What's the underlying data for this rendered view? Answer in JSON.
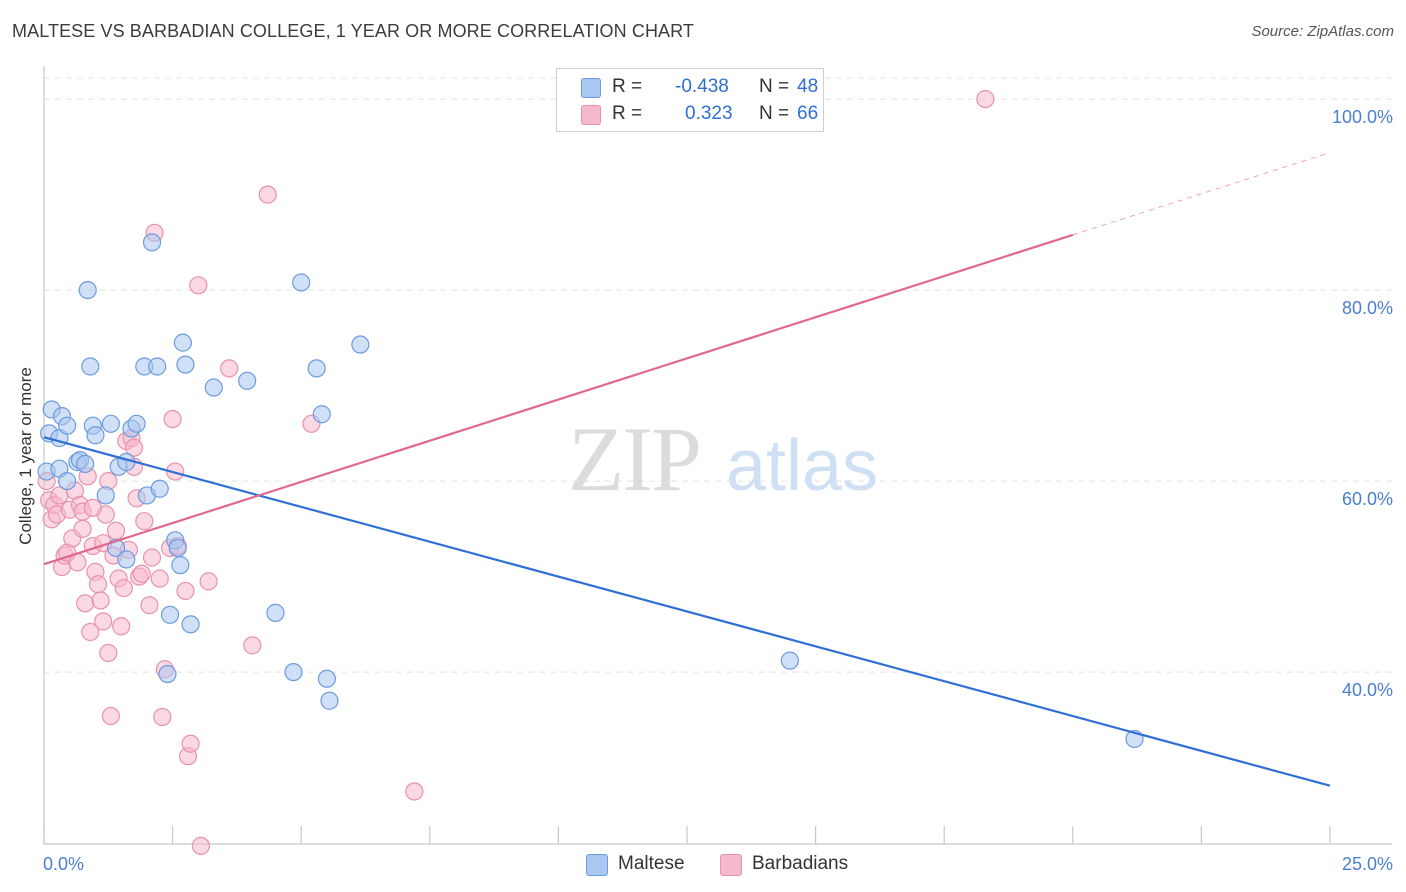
{
  "title": "MALTESE VS BARBADIAN COLLEGE, 1 YEAR OR MORE CORRELATION CHART",
  "source": "Source: ZipAtlas.com",
  "watermark": {
    "zip": "ZIP",
    "atlas": "atlas"
  },
  "colors": {
    "maltese_fill": "#a9c7ef",
    "maltese_stroke": "#6c9be0",
    "maltese_line": "#2f6fd6",
    "barbadian_fill": "#f5b9cc",
    "barbadian_stroke": "#e991ad",
    "barbadian_line": "#e0688f",
    "tick_text": "#4a7fd0"
  },
  "legend": {
    "rows": [
      {
        "label": "R =",
        "r": "-0.438",
        "n_label": "N =",
        "n": "48",
        "color": "#a9c7ef"
      },
      {
        "label": "R =",
        "r": "0.323",
        "n_label": "N =",
        "n": "66",
        "color": "#f5b9cc"
      }
    ]
  },
  "bottom_legend": [
    {
      "label": "Maltese",
      "color": "#a9c7ef"
    },
    {
      "label": "Barbadians",
      "color": "#f5b9cc"
    }
  ],
  "chart_data": {
    "type": "scatter",
    "title": "MALTESE VS BARBADIAN COLLEGE, 1 YEAR OR MORE CORRELATION CHART",
    "xlabel": "",
    "ylabel": "College, 1 year or more",
    "xlim": [
      0,
      25
    ],
    "ylim": [
      22,
      102
    ],
    "x_tick_labels": [
      "0.0%",
      "25.0%"
    ],
    "y_ticks": [
      40,
      60,
      80,
      100
    ],
    "y_tick_labels": [
      "40.0%",
      "60.0%",
      "80.0%",
      "100.0%"
    ],
    "grid": true,
    "legend_position": "top-center",
    "series": [
      {
        "name": "Maltese",
        "r": -0.438,
        "n": 48,
        "trend": {
          "x": [
            0,
            25
          ],
          "y": [
            64.6,
            28.1
          ],
          "dashed_from_x": null
        },
        "points": [
          [
            0.05,
            61.0
          ],
          [
            0.1,
            65.0
          ],
          [
            0.15,
            67.5
          ],
          [
            0.3,
            64.5
          ],
          [
            0.3,
            61.3
          ],
          [
            0.35,
            66.8
          ],
          [
            0.45,
            65.8
          ],
          [
            0.45,
            60.0
          ],
          [
            0.65,
            62.0
          ],
          [
            0.7,
            62.2
          ],
          [
            0.8,
            61.8
          ],
          [
            0.85,
            80.0
          ],
          [
            0.9,
            72.0
          ],
          [
            0.95,
            65.8
          ],
          [
            1.0,
            64.8
          ],
          [
            1.2,
            58.5
          ],
          [
            1.3,
            66.0
          ],
          [
            1.4,
            53.0
          ],
          [
            1.45,
            61.5
          ],
          [
            1.6,
            62.0
          ],
          [
            1.7,
            65.5
          ],
          [
            1.8,
            66.0
          ],
          [
            1.95,
            72.0
          ],
          [
            2.0,
            58.5
          ],
          [
            2.1,
            85.0
          ],
          [
            2.2,
            72.0
          ],
          [
            2.25,
            59.2
          ],
          [
            2.4,
            39.8
          ],
          [
            2.45,
            46.0
          ],
          [
            2.55,
            53.8
          ],
          [
            2.6,
            53.0
          ],
          [
            2.65,
            51.2
          ],
          [
            2.7,
            74.5
          ],
          [
            2.75,
            72.2
          ],
          [
            2.85,
            45.0
          ],
          [
            3.3,
            69.8
          ],
          [
            3.95,
            70.5
          ],
          [
            4.5,
            46.2
          ],
          [
            4.85,
            40.0
          ],
          [
            5.0,
            80.8
          ],
          [
            5.3,
            71.8
          ],
          [
            5.4,
            67.0
          ],
          [
            5.5,
            39.3
          ],
          [
            5.55,
            37.0
          ],
          [
            6.15,
            74.3
          ],
          [
            14.5,
            41.2
          ],
          [
            21.2,
            33.0
          ],
          [
            1.6,
            51.8
          ]
        ]
      },
      {
        "name": "Barbadians",
        "r": 0.323,
        "n": 66,
        "trend": {
          "x": [
            0,
            25
          ],
          "y": [
            51.3,
            94.4
          ],
          "dashed_from_x": 20
        },
        "points": [
          [
            0.05,
            60.0
          ],
          [
            0.1,
            58.0
          ],
          [
            0.15,
            56.0
          ],
          [
            0.2,
            57.5
          ],
          [
            0.25,
            56.5
          ],
          [
            0.3,
            58.5
          ],
          [
            0.35,
            51.0
          ],
          [
            0.4,
            52.2
          ],
          [
            0.45,
            52.5
          ],
          [
            0.5,
            57.0
          ],
          [
            0.6,
            59.0
          ],
          [
            0.65,
            51.5
          ],
          [
            0.7,
            57.5
          ],
          [
            0.75,
            56.8
          ],
          [
            0.8,
            47.2
          ],
          [
            0.85,
            60.5
          ],
          [
            0.9,
            44.2
          ],
          [
            0.95,
            53.2
          ],
          [
            1.0,
            50.5
          ],
          [
            1.05,
            49.2
          ],
          [
            1.1,
            47.5
          ],
          [
            1.15,
            45.3
          ],
          [
            1.2,
            56.5
          ],
          [
            1.25,
            42.0
          ],
          [
            1.3,
            35.4
          ],
          [
            1.35,
            52.2
          ],
          [
            1.4,
            54.8
          ],
          [
            1.45,
            49.8
          ],
          [
            1.5,
            44.8
          ],
          [
            1.55,
            48.8
          ],
          [
            1.6,
            64.2
          ],
          [
            1.65,
            52.8
          ],
          [
            1.7,
            64.5
          ],
          [
            1.75,
            61.5
          ],
          [
            1.8,
            58.2
          ],
          [
            1.85,
            50.0
          ],
          [
            1.9,
            50.3
          ],
          [
            1.95,
            55.8
          ],
          [
            2.05,
            47.0
          ],
          [
            2.1,
            52.0
          ],
          [
            2.15,
            86.0
          ],
          [
            2.25,
            49.8
          ],
          [
            2.3,
            35.3
          ],
          [
            2.35,
            40.3
          ],
          [
            2.45,
            53.0
          ],
          [
            2.5,
            66.5
          ],
          [
            2.6,
            53.2
          ],
          [
            2.75,
            48.5
          ],
          [
            2.8,
            31.2
          ],
          [
            2.85,
            32.5
          ],
          [
            3.0,
            80.5
          ],
          [
            3.05,
            21.8
          ],
          [
            3.2,
            49.5
          ],
          [
            3.6,
            71.8
          ],
          [
            4.05,
            42.8
          ],
          [
            4.35,
            90.0
          ],
          [
            5.2,
            66.0
          ],
          [
            7.2,
            27.5
          ],
          [
            18.3,
            100.0
          ],
          [
            1.75,
            63.5
          ],
          [
            0.55,
            54.0
          ],
          [
            1.25,
            60.0
          ],
          [
            0.95,
            57.2
          ],
          [
            2.55,
            61.0
          ],
          [
            1.15,
            53.5
          ],
          [
            0.75,
            55.0
          ]
        ]
      }
    ]
  }
}
